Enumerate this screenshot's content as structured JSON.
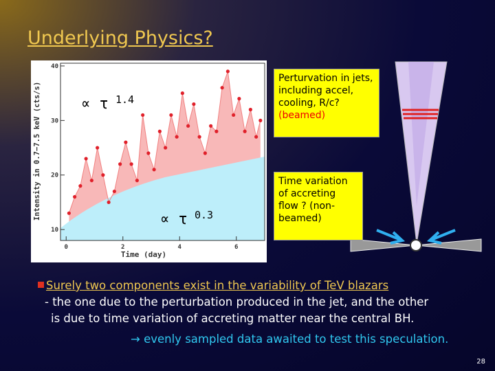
{
  "title": "Underlying Physics?",
  "chart_data": {
    "type": "scatter",
    "x_label": "Time (day)",
    "y_label": "Intensity in 0.7−7.5 keV (cts/s)",
    "xlim": [
      -0.2,
      7
    ],
    "ylim": [
      8,
      40.5
    ],
    "xticks": [
      0,
      2,
      4,
      6
    ],
    "yticks": [
      10,
      20,
      30,
      40
    ],
    "annotations": [
      {
        "text": "∝ τ",
        "exponent": 1.4
      },
      {
        "text": "∝ τ",
        "exponent": 0.3
      }
    ],
    "series": [
      {
        "color": "#e0202a",
        "x": [
          0.1,
          0.3,
          0.5,
          0.7,
          0.9,
          1.1,
          1.3,
          1.5,
          1.7,
          1.9,
          2.1,
          2.3,
          2.5,
          2.7,
          2.9,
          3.1,
          3.3,
          3.5,
          3.7,
          3.9,
          4.1,
          4.3,
          4.5,
          4.7,
          4.9,
          5.1,
          5.3,
          5.5,
          5.7,
          5.9,
          6.1,
          6.3,
          6.5,
          6.7,
          6.85
        ],
        "values": [
          13,
          16,
          18,
          23,
          19,
          25,
          20,
          15,
          17,
          22,
          26,
          22,
          19,
          31,
          24,
          21,
          28,
          25,
          31,
          27,
          35,
          29,
          33,
          27,
          24,
          29,
          28,
          36,
          39,
          31,
          34,
          28,
          32,
          27,
          30
        ]
      }
    ]
  },
  "callouts": [
    {
      "text": "Perturvation in jets, including accel, cooling, R/c?",
      "highlight": "(beamed)"
    },
    {
      "text": "Time variation of accreting flow ? (non-beamed)"
    }
  ],
  "bullet": {
    "heading": "Surely two components exist in the variability of TeV blazars",
    "lines": [
      "- the one due to the perturbation produced in the jet, and the other",
      "is due to time variation of accreting matter near the central BH."
    ],
    "conclusion": "→ evenly sampled data awaited to test this speculation."
  },
  "page_number": 28
}
